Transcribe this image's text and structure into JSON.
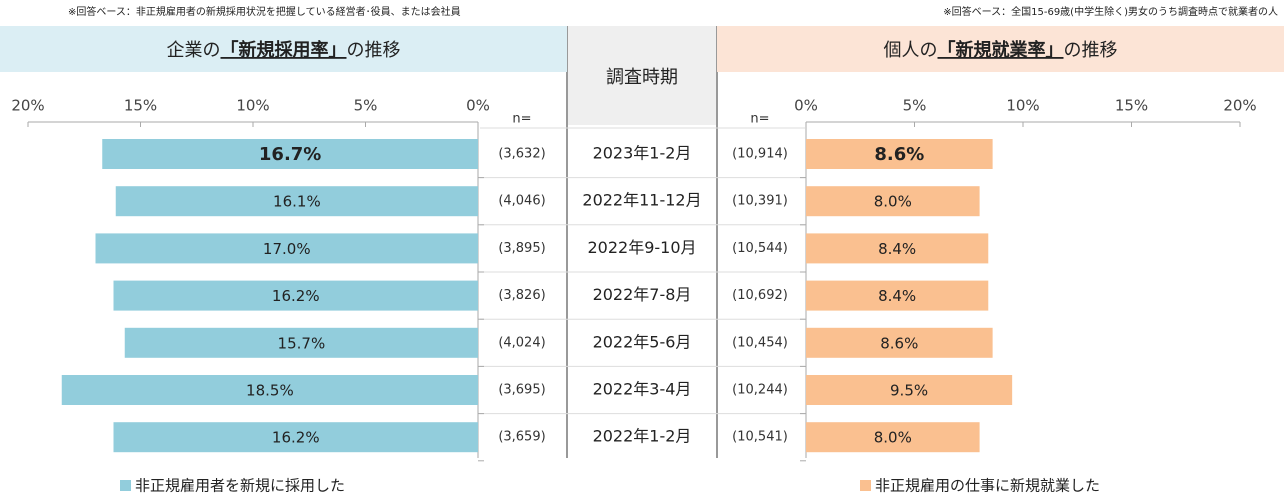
{
  "notes": [
    "※回答ベース：非正規雇用者の新規採用状況を把握している経営者･役員、または会社員",
    "※回答ベース：全国15-69歳(中学生除く)男女のうち調査時点で就業者の人"
  ],
  "period_header": "調査時期",
  "n_label": "n=",
  "periods": [
    "2023年1-2月",
    "2022年11-12月",
    "2022年9-10月",
    "2022年7-8月",
    "2022年5-6月",
    "2022年3-4月",
    "2022年1-2月"
  ],
  "chart_data": [
    {
      "type": "bar",
      "orientation": "horizontal",
      "direction": "left",
      "title_prefix": "企業の",
      "title_emphasis": "「新規採用率」",
      "title_suffix": "の推移",
      "legend": "非正規雇用者を新規に採用した",
      "color": "#92cddc",
      "title_bg": "#dbeef4",
      "values": [
        16.7,
        16.1,
        17.0,
        16.2,
        15.7,
        18.5,
        16.2
      ],
      "value_labels": [
        "16.7%",
        "16.1%",
        "17.0%",
        "16.2%",
        "15.7%",
        "18.5%",
        "16.2%"
      ],
      "sample_sizes": [
        3632,
        4046,
        3895,
        3826,
        4024,
        3695,
        3659
      ],
      "sample_size_labels": [
        "(3,632)",
        "(4,046)",
        "(3,895)",
        "(3,826)",
        "(4,024)",
        "(3,695)",
        "(3,659)"
      ],
      "xlim": [
        0,
        20
      ],
      "xticks": [
        {
          "value": 20,
          "label": "20%"
        },
        {
          "value": 15,
          "label": "15%"
        },
        {
          "value": 10,
          "label": "10%"
        },
        {
          "value": 5,
          "label": "5%"
        },
        {
          "value": 0,
          "label": "0%"
        }
      ]
    },
    {
      "type": "bar",
      "orientation": "horizontal",
      "direction": "right",
      "title_prefix": "個人の",
      "title_emphasis": "「新規就業率」",
      "title_suffix": "の推移",
      "legend": "非正規雇用の仕事に新規就業した",
      "color": "#fac090",
      "title_bg": "#fce4d6",
      "values": [
        8.6,
        8.0,
        8.4,
        8.4,
        8.6,
        9.5,
        8.0
      ],
      "value_labels": [
        "8.6%",
        "8.0%",
        "8.4%",
        "8.4%",
        "8.6%",
        "9.5%",
        "8.0%"
      ],
      "sample_sizes": [
        10914,
        10391,
        10544,
        10692,
        10454,
        10244,
        10541
      ],
      "sample_size_labels": [
        "(10,914)",
        "(10,391)",
        "(10,544)",
        "(10,692)",
        "(10,454)",
        "(10,244)",
        "(10,541)"
      ],
      "xlim": [
        0,
        20
      ],
      "xticks": [
        {
          "value": 0,
          "label": "0%"
        },
        {
          "value": 5,
          "label": "5%"
        },
        {
          "value": 10,
          "label": "10%"
        },
        {
          "value": 15,
          "label": "15%"
        },
        {
          "value": 20,
          "label": "20%"
        }
      ]
    }
  ]
}
